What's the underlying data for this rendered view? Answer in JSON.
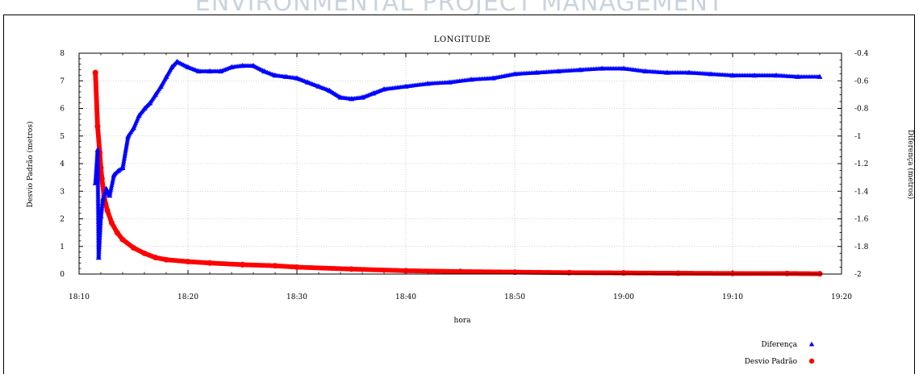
{
  "watermark": "ENVIRONMENTAL PROJECT MANAGEMENT",
  "chart_data": {
    "type": "scatter",
    "title": "LONGITUDE",
    "xlabel": "hora",
    "ylabel_left": "Desvio Padrão (metros)",
    "ylabel_right": "Diferença (metros)",
    "x_unit": "minutes",
    "x_range": [
      "18:10",
      "19:20"
    ],
    "x_ticks": [
      "18:10",
      "18:20",
      "18:30",
      "18:40",
      "18:50",
      "19:00",
      "19:10",
      "19:20"
    ],
    "y_left_range": [
      0,
      8
    ],
    "y_left_ticks": [
      "0",
      "1",
      "2",
      "3",
      "4",
      "5",
      "6",
      "7",
      "8"
    ],
    "y_right_range": [
      -2,
      -0.4
    ],
    "y_right_ticks": [
      "-2",
      "-1.8",
      "-1.6",
      "-1.4",
      "-1.2",
      "-1",
      "-0.8",
      "-0.6",
      "-0.4"
    ],
    "grid": true,
    "legend_position": "bottom-right",
    "series": [
      {
        "name": "Diferença",
        "axis": "right",
        "marker": "triangle",
        "color": "#0000ff",
        "x": [
          "18:11.5",
          "18:11.7",
          "18:11.8",
          "18:12.0",
          "18:12.2",
          "18:12.5",
          "18:12.8",
          "18:13.2",
          "18:13.6",
          "18:14.0",
          "18:14.5",
          "18:15.0",
          "18:15.5",
          "18:16.0",
          "18:16.5",
          "18:17.0",
          "18:17.5",
          "18:18.0",
          "18:18.5",
          "18:19.0",
          "18:20.0",
          "18:21.0",
          "18:22.0",
          "18:23.0",
          "18:24.0",
          "18:25.0",
          "18:26.0",
          "18:27.0",
          "18:28.0",
          "18:29.0",
          "18:30.0",
          "18:31.0",
          "18:32.0",
          "18:33.0",
          "18:34.0",
          "18:35.0",
          "18:36.0",
          "18:37.0",
          "18:38.0",
          "18:40.0",
          "18:42.0",
          "18:44.0",
          "18:46.0",
          "18:48.0",
          "18:50.0",
          "18:52.0",
          "18:54.0",
          "18:56.0",
          "18:58.0",
          "19:00.0",
          "19:02.0",
          "19:04.0",
          "19:06.0",
          "19:08.0",
          "19:10.0",
          "19:12.0",
          "19:14.0",
          "19:16.0",
          "19:18.0"
        ],
        "y": [
          -1.34,
          -1.1,
          -1.88,
          -1.58,
          -1.45,
          -1.38,
          -1.43,
          -1.28,
          -1.25,
          -1.23,
          -1.0,
          -0.94,
          -0.85,
          -0.8,
          -0.76,
          -0.7,
          -0.64,
          -0.57,
          -0.5,
          -0.46,
          -0.5,
          -0.53,
          -0.53,
          -0.53,
          -0.5,
          -0.49,
          -0.49,
          -0.53,
          -0.56,
          -0.57,
          -0.58,
          -0.61,
          -0.64,
          -0.67,
          -0.72,
          -0.73,
          -0.72,
          -0.69,
          -0.66,
          -0.64,
          -0.62,
          -0.61,
          -0.59,
          -0.58,
          -0.55,
          -0.54,
          -0.53,
          -0.52,
          -0.51,
          -0.51,
          -0.53,
          -0.54,
          -0.54,
          -0.55,
          -0.56,
          -0.56,
          -0.56,
          -0.57,
          -0.57
        ]
      },
      {
        "name": "Desvio Padrão",
        "axis": "left",
        "marker": "circle",
        "color": "#ff0000",
        "x": [
          "18:11.5",
          "18:11.7",
          "18:11.9",
          "18:12.0",
          "18:12.1",
          "18:12.3",
          "18:12.6",
          "18:13.0",
          "18:13.5",
          "18:14.0",
          "18:15.0",
          "18:16.0",
          "18:17.0",
          "18:18.0",
          "18:20.0",
          "18:22.0",
          "18:25.0",
          "18:28.0",
          "18:30.0",
          "18:35.0",
          "18:40.0",
          "18:45.0",
          "18:50.0",
          "18:55.0",
          "19:00.0",
          "19:05.0",
          "19:10.0",
          "19:15.0",
          "19:18.0"
        ],
        "y": [
          7.3,
          5.35,
          4.4,
          3.85,
          3.45,
          2.8,
          2.3,
          1.85,
          1.5,
          1.25,
          0.95,
          0.75,
          0.6,
          0.52,
          0.45,
          0.4,
          0.34,
          0.3,
          0.25,
          0.18,
          0.12,
          0.09,
          0.07,
          0.05,
          0.04,
          0.03,
          0.02,
          0.02,
          0.01
        ]
      }
    ]
  }
}
